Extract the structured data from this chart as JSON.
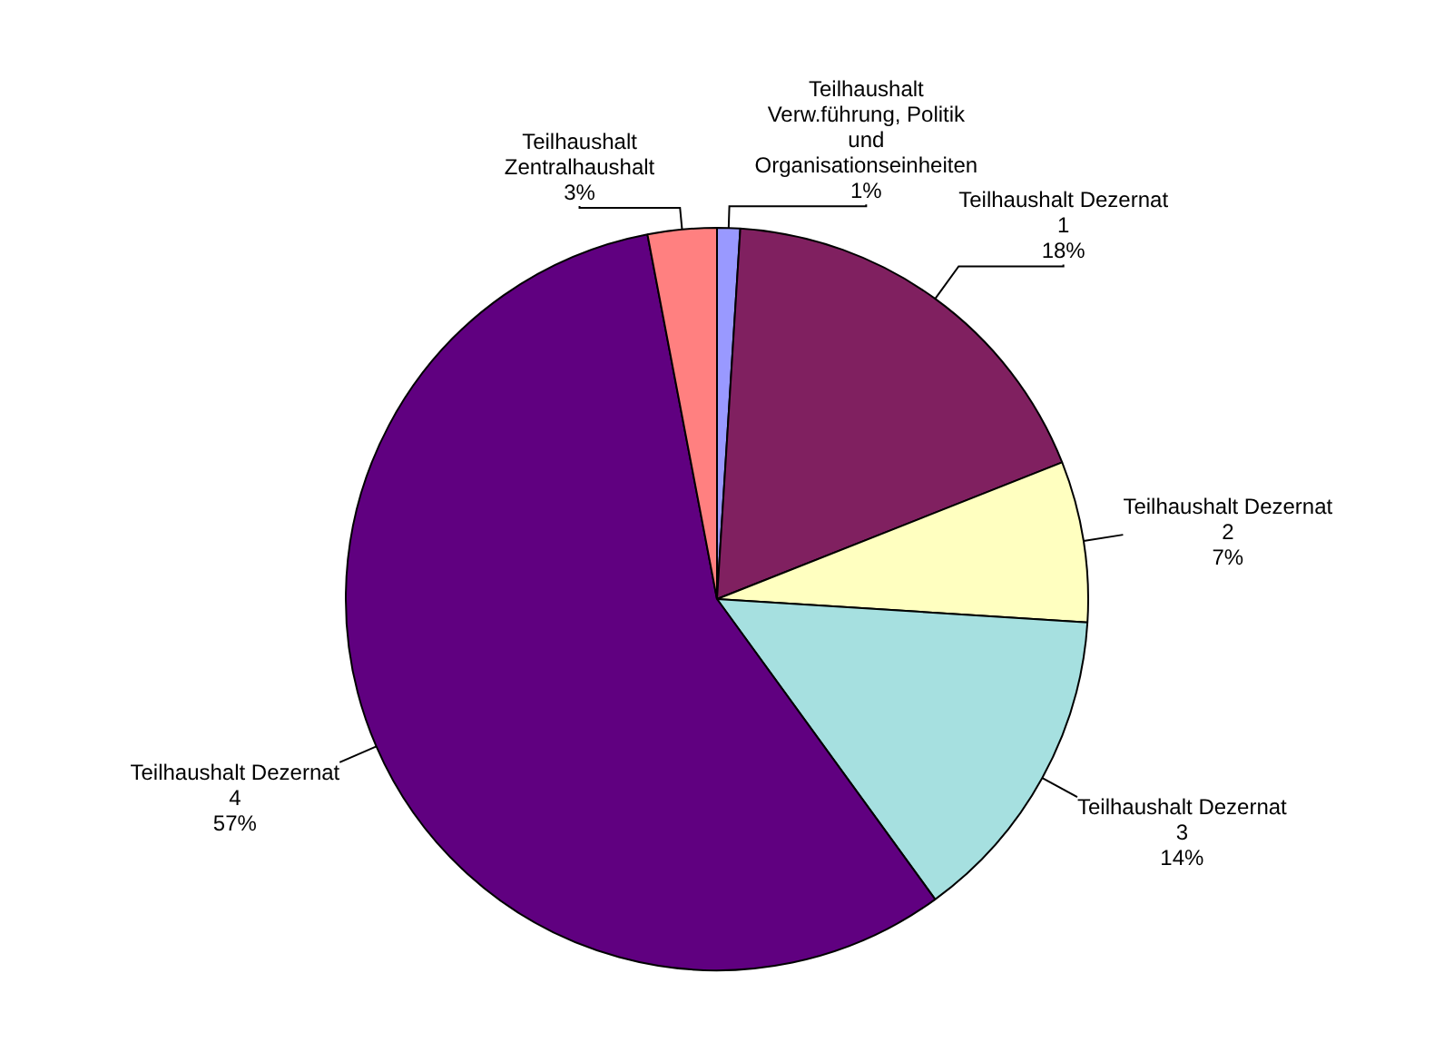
{
  "chart_data": {
    "type": "pie",
    "categories": [
      "Teilhaushalt Verw.führung, Politik und Organisationseinheiten",
      "Teilhaushalt Dezernat 1",
      "Teilhaushalt Dezernat 2",
      "Teilhaushalt Dezernat 3",
      "Teilhaushalt Dezernat 4",
      "Teilhaushalt Zentralhaushalt"
    ],
    "values": [
      1,
      18,
      7,
      14,
      57,
      3
    ],
    "value_labels": [
      "1%",
      "18%",
      "7%",
      "14%",
      "57%",
      "3%"
    ],
    "colors": [
      "#9999ff",
      "#802060",
      "#ffffc0",
      "#a6e0e0",
      "#600080",
      "#ff8080"
    ]
  }
}
